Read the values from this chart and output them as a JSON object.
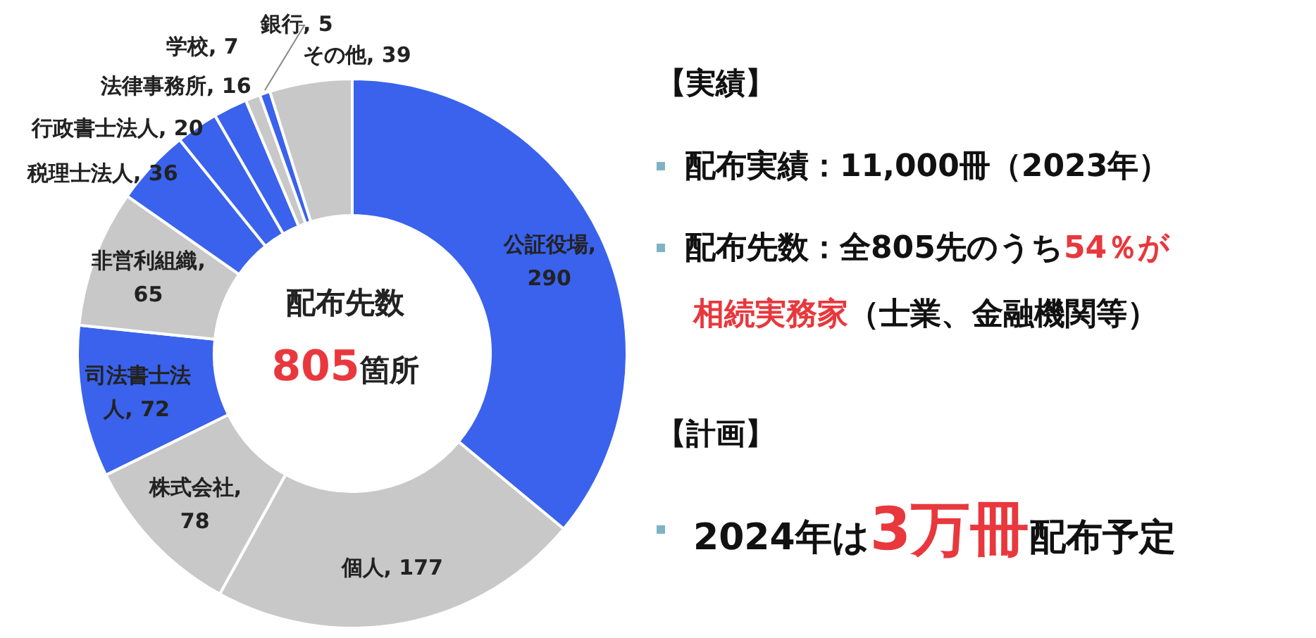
{
  "chart_data": [
    {
      "type": "donut",
      "categories": [
        "公証役場",
        "個人",
        "株式会社",
        "司法書士法人",
        "非営利組織",
        "税理士法人",
        "行政書士法人",
        "法律事務所",
        "学校",
        "銀行",
        "その他"
      ],
      "values": [
        290,
        177,
        78,
        72,
        65,
        36,
        20,
        16,
        7,
        5,
        39
      ],
      "colors": [
        "#3a62ec",
        "#c8c8c8",
        "#c8c8c8",
        "#3a62ec",
        "#c8c8c8",
        "#3a62ec",
        "#3a62ec",
        "#3a62ec",
        "#c8c8c8",
        "#3a62ec",
        "#c8c8c8"
      ],
      "value_labels": [
        ", 290",
        ", 177",
        ", 78",
        ", 72",
        ", 65",
        ", 36",
        ", 20",
        ", 16",
        ", 7",
        ", 5",
        ", 39"
      ],
      "annotations": [
        "配布先数",
        "805",
        "箇所"
      ]
    },
    {
      "type": "other",
      "annotations": [
        "【実績】",
        "配布実績：11,000冊（2023年）",
        "配布先数：全805先のうち",
        "54％が",
        "相続実務家",
        "（士業、金融機関等）",
        "【計画】",
        "2024年は",
        "3万冊",
        "配布予定"
      ]
    }
  ]
}
